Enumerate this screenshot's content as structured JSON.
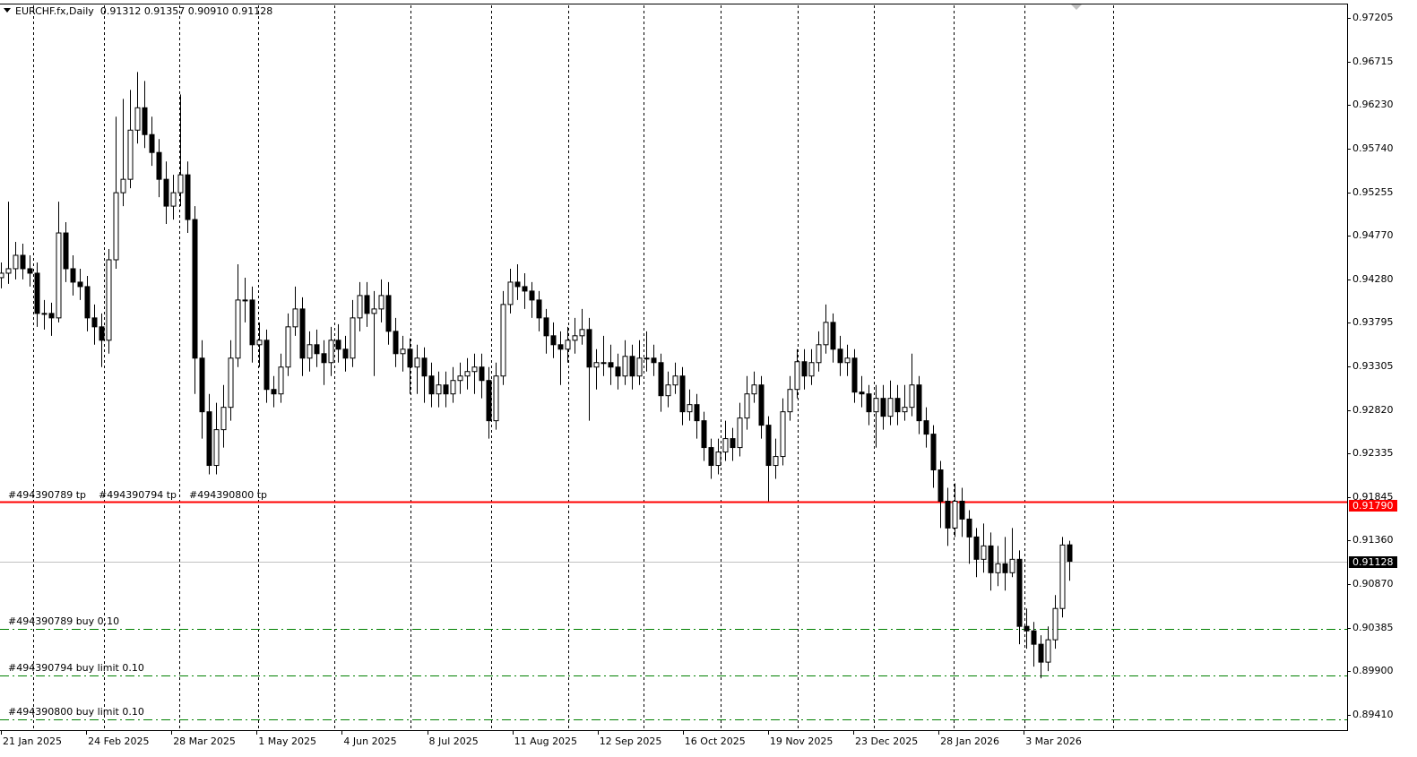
{
  "header": {
    "symbol": "EURCHF.fx,Daily",
    "ohlc": "0.91312 0.91357 0.90910 0.91128"
  },
  "orders": {
    "tp_labels": [
      "#494390789 tp",
      "#494390794 tp",
      "#494390800 tp"
    ],
    "tp_price": 0.9179,
    "tp_price_label": "0.91790",
    "entries": [
      {
        "label": "#494390789 buy 0.10",
        "price": 0.90372
      },
      {
        "label": "#494390794 buy limit 0.10",
        "price": 0.89851
      },
      {
        "label": "#494390800 buy limit 0.10",
        "price": 0.8936
      }
    ],
    "current_price": 0.91128,
    "current_price_label": "0.91128"
  },
  "colors": {
    "tp_line": "#ff0000",
    "entry_line": "#008000",
    "current_line": "#c0c0c0",
    "candle": "#000000"
  },
  "chart_data": {
    "type": "candlestick",
    "symbol": "EURCHF.fx",
    "timeframe": "Daily",
    "ylim": [
      0.8941,
      0.97205
    ],
    "y_ticks": [
      "0.97205",
      "0.96715",
      "0.96230",
      "0.95740",
      "0.95255",
      "0.94770",
      "0.94280",
      "0.93795",
      "0.93305",
      "0.92820",
      "0.92335",
      "0.91845",
      "0.91360",
      "0.90870",
      "0.90385",
      "0.89900",
      "0.89410"
    ],
    "x_ticks": [
      "21 Jan 2025",
      "24 Feb 2025",
      "28 Mar 2025",
      "1 May 2025",
      "4 Jun 2025",
      "8 Jul 2025",
      "11 Aug 2025",
      "12 Sep 2025",
      "16 Oct 2025",
      "19 Nov 2025",
      "23 Dec 2025",
      "28 Jan 2026",
      "3 Mar 2026"
    ],
    "grid": "vertical dashed",
    "candles_ohlc": [
      [
        0.943,
        0.9447,
        0.9418,
        0.9435
      ],
      [
        0.9435,
        0.9515,
        0.9423,
        0.944
      ],
      [
        0.944,
        0.947,
        0.9428,
        0.9455
      ],
      [
        0.9455,
        0.9468,
        0.9428,
        0.944
      ],
      [
        0.944,
        0.9455,
        0.942,
        0.9435
      ],
      [
        0.9435,
        0.9447,
        0.9375,
        0.939
      ],
      [
        0.939,
        0.9405,
        0.9372,
        0.939
      ],
      [
        0.939,
        0.9402,
        0.9365,
        0.9385
      ],
      [
        0.9385,
        0.9515,
        0.938,
        0.948
      ],
      [
        0.948,
        0.9492,
        0.9425,
        0.944
      ],
      [
        0.944,
        0.9455,
        0.941,
        0.9425
      ],
      [
        0.9425,
        0.944,
        0.9405,
        0.942
      ],
      [
        0.942,
        0.9432,
        0.937,
        0.9385
      ],
      [
        0.9385,
        0.94,
        0.9355,
        0.9375
      ],
      [
        0.9375,
        0.939,
        0.933,
        0.936
      ],
      [
        0.936,
        0.9462,
        0.9345,
        0.945
      ],
      [
        0.945,
        0.961,
        0.944,
        0.9525
      ],
      [
        0.9525,
        0.963,
        0.951,
        0.954
      ],
      [
        0.954,
        0.964,
        0.953,
        0.9595
      ],
      [
        0.9595,
        0.966,
        0.958,
        0.962
      ],
      [
        0.962,
        0.965,
        0.9575,
        0.959
      ],
      [
        0.959,
        0.961,
        0.9555,
        0.957
      ],
      [
        0.957,
        0.9585,
        0.952,
        0.954
      ],
      [
        0.954,
        0.956,
        0.949,
        0.951
      ],
      [
        0.951,
        0.9545,
        0.9495,
        0.9525
      ],
      [
        0.9525,
        0.9635,
        0.951,
        0.9545
      ],
      [
        0.9545,
        0.956,
        0.948,
        0.9495
      ],
      [
        0.9495,
        0.951,
        0.93,
        0.934
      ],
      [
        0.934,
        0.936,
        0.925,
        0.928
      ],
      [
        0.928,
        0.93,
        0.921,
        0.922
      ],
      [
        0.922,
        0.929,
        0.921,
        0.926
      ],
      [
        0.926,
        0.931,
        0.924,
        0.9285
      ],
      [
        0.9285,
        0.936,
        0.927,
        0.934
      ],
      [
        0.934,
        0.9445,
        0.933,
        0.9405
      ],
      [
        0.9405,
        0.943,
        0.938,
        0.9405
      ],
      [
        0.9405,
        0.942,
        0.9335,
        0.9355
      ],
      [
        0.9355,
        0.938,
        0.933,
        0.936
      ],
      [
        0.936,
        0.9372,
        0.929,
        0.9305
      ],
      [
        0.9305,
        0.932,
        0.9285,
        0.93
      ],
      [
        0.93,
        0.9345,
        0.929,
        0.933
      ],
      [
        0.933,
        0.939,
        0.932,
        0.9375
      ],
      [
        0.9375,
        0.942,
        0.9365,
        0.9395
      ],
      [
        0.9395,
        0.9408,
        0.932,
        0.934
      ],
      [
        0.934,
        0.937,
        0.9325,
        0.9355
      ],
      [
        0.9355,
        0.9372,
        0.933,
        0.9345
      ],
      [
        0.9345,
        0.936,
        0.931,
        0.9335
      ],
      [
        0.9335,
        0.9375,
        0.932,
        0.936
      ],
      [
        0.936,
        0.9378,
        0.9335,
        0.935
      ],
      [
        0.935,
        0.9365,
        0.9325,
        0.934
      ],
      [
        0.934,
        0.9405,
        0.933,
        0.9385
      ],
      [
        0.9385,
        0.9425,
        0.937,
        0.941
      ],
      [
        0.941,
        0.9425,
        0.9375,
        0.939
      ],
      [
        0.939,
        0.9415,
        0.932,
        0.9395
      ],
      [
        0.9395,
        0.9428,
        0.938,
        0.941
      ],
      [
        0.941,
        0.9425,
        0.9355,
        0.937
      ],
      [
        0.937,
        0.9385,
        0.933,
        0.9345
      ],
      [
        0.9345,
        0.9365,
        0.9325,
        0.935
      ],
      [
        0.935,
        0.9362,
        0.93,
        0.933
      ],
      [
        0.933,
        0.9355,
        0.93,
        0.934
      ],
      [
        0.934,
        0.9352,
        0.929,
        0.932
      ],
      [
        0.932,
        0.9335,
        0.9285,
        0.93
      ],
      [
        0.93,
        0.9325,
        0.9285,
        0.931
      ],
      [
        0.931,
        0.9325,
        0.9285,
        0.93
      ],
      [
        0.93,
        0.933,
        0.929,
        0.9315
      ],
      [
        0.9315,
        0.9335,
        0.93,
        0.932
      ],
      [
        0.932,
        0.934,
        0.9305,
        0.9325
      ],
      [
        0.9325,
        0.9345,
        0.93,
        0.933
      ],
      [
        0.933,
        0.9345,
        0.9295,
        0.9315
      ],
      [
        0.9315,
        0.933,
        0.925,
        0.927
      ],
      [
        0.927,
        0.9335,
        0.926,
        0.932
      ],
      [
        0.932,
        0.9415,
        0.931,
        0.94
      ],
      [
        0.94,
        0.944,
        0.939,
        0.9425
      ],
      [
        0.9425,
        0.9445,
        0.9405,
        0.942
      ],
      [
        0.942,
        0.9435,
        0.9395,
        0.9415
      ],
      [
        0.9415,
        0.9425,
        0.9385,
        0.9405
      ],
      [
        0.9405,
        0.9415,
        0.937,
        0.9385
      ],
      [
        0.9385,
        0.9395,
        0.9345,
        0.9365
      ],
      [
        0.9365,
        0.938,
        0.934,
        0.9355
      ],
      [
        0.9355,
        0.937,
        0.931,
        0.935
      ],
      [
        0.935,
        0.9375,
        0.9335,
        0.936
      ],
      [
        0.936,
        0.9385,
        0.9345,
        0.9365
      ],
      [
        0.9365,
        0.9395,
        0.9355,
        0.9372
      ],
      [
        0.9372,
        0.9385,
        0.927,
        0.933
      ],
      [
        0.933,
        0.935,
        0.9305,
        0.9335
      ],
      [
        0.9335,
        0.9365,
        0.932,
        0.9335
      ],
      [
        0.9335,
        0.9355,
        0.931,
        0.933
      ],
      [
        0.933,
        0.9345,
        0.9305,
        0.932
      ],
      [
        0.932,
        0.936,
        0.931,
        0.9342
      ],
      [
        0.9342,
        0.9355,
        0.9305,
        0.932
      ],
      [
        0.932,
        0.936,
        0.931,
        0.934
      ],
      [
        0.934,
        0.937,
        0.9325,
        0.934
      ],
      [
        0.934,
        0.9355,
        0.932,
        0.9335
      ],
      [
        0.9335,
        0.9345,
        0.928,
        0.9298
      ],
      [
        0.9298,
        0.9325,
        0.9285,
        0.931
      ],
      [
        0.931,
        0.9335,
        0.93,
        0.932
      ],
      [
        0.932,
        0.933,
        0.9265,
        0.928
      ],
      [
        0.928,
        0.9305,
        0.927,
        0.9288
      ],
      [
        0.9288,
        0.93,
        0.925,
        0.927
      ],
      [
        0.927,
        0.928,
        0.9225,
        0.924
      ],
      [
        0.924,
        0.925,
        0.9205,
        0.922
      ],
      [
        0.922,
        0.925,
        0.921,
        0.9235
      ],
      [
        0.9235,
        0.927,
        0.9225,
        0.925
      ],
      [
        0.925,
        0.9262,
        0.9225,
        0.924
      ],
      [
        0.924,
        0.929,
        0.923,
        0.9273
      ],
      [
        0.9273,
        0.932,
        0.926,
        0.93
      ],
      [
        0.93,
        0.9325,
        0.929,
        0.931
      ],
      [
        0.931,
        0.932,
        0.925,
        0.9265
      ],
      [
        0.9265,
        0.9275,
        0.918,
        0.922
      ],
      [
        0.922,
        0.925,
        0.9205,
        0.923
      ],
      [
        0.923,
        0.9295,
        0.922,
        0.928
      ],
      [
        0.928,
        0.932,
        0.927,
        0.9305
      ],
      [
        0.9305,
        0.935,
        0.9295,
        0.9336
      ],
      [
        0.9336,
        0.935,
        0.9305,
        0.932
      ],
      [
        0.932,
        0.935,
        0.931,
        0.9335
      ],
      [
        0.9335,
        0.937,
        0.9325,
        0.9355
      ],
      [
        0.9355,
        0.94,
        0.9345,
        0.938
      ],
      [
        0.938,
        0.939,
        0.9335,
        0.935
      ],
      [
        0.935,
        0.9365,
        0.932,
        0.9335
      ],
      [
        0.9335,
        0.9355,
        0.932,
        0.934
      ],
      [
        0.934,
        0.935,
        0.929,
        0.9302
      ],
      [
        0.9302,
        0.932,
        0.9285,
        0.93
      ],
      [
        0.93,
        0.931,
        0.9265,
        0.928
      ],
      [
        0.928,
        0.931,
        0.924,
        0.9295
      ],
      [
        0.9295,
        0.931,
        0.926,
        0.9275
      ],
      [
        0.9275,
        0.9315,
        0.9265,
        0.9295
      ],
      [
        0.9295,
        0.931,
        0.9265,
        0.928
      ],
      [
        0.928,
        0.931,
        0.927,
        0.9285
      ],
      [
        0.9285,
        0.9345,
        0.9275,
        0.931
      ],
      [
        0.931,
        0.932,
        0.9255,
        0.927
      ],
      [
        0.927,
        0.9285,
        0.924,
        0.9255
      ],
      [
        0.9255,
        0.9265,
        0.9195,
        0.9215
      ],
      [
        0.9215,
        0.9225,
        0.915,
        0.918
      ],
      [
        0.918,
        0.9195,
        0.913,
        0.915
      ],
      [
        0.915,
        0.92,
        0.914,
        0.918
      ],
      [
        0.918,
        0.9195,
        0.914,
        0.916
      ],
      [
        0.916,
        0.917,
        0.911,
        0.914
      ],
      [
        0.914,
        0.915,
        0.9095,
        0.9115
      ],
      [
        0.9115,
        0.9155,
        0.91,
        0.913
      ],
      [
        0.913,
        0.9145,
        0.908,
        0.91
      ],
      [
        0.91,
        0.913,
        0.9085,
        0.911
      ],
      [
        0.911,
        0.914,
        0.908,
        0.91
      ],
      [
        0.91,
        0.915,
        0.9095,
        0.9115
      ],
      [
        0.9115,
        0.9125,
        0.902,
        0.904
      ],
      [
        0.904,
        0.906,
        0.9015,
        0.9035
      ],
      [
        0.9035,
        0.9045,
        0.8995,
        0.902
      ],
      [
        0.902,
        0.903,
        0.8982,
        0.9
      ],
      [
        0.9,
        0.904,
        0.899,
        0.9025
      ],
      [
        0.9025,
        0.9075,
        0.9015,
        0.906
      ],
      [
        0.906,
        0.914,
        0.905,
        0.9131
      ],
      [
        0.91312,
        0.91357,
        0.9091,
        0.91128
      ]
    ]
  }
}
